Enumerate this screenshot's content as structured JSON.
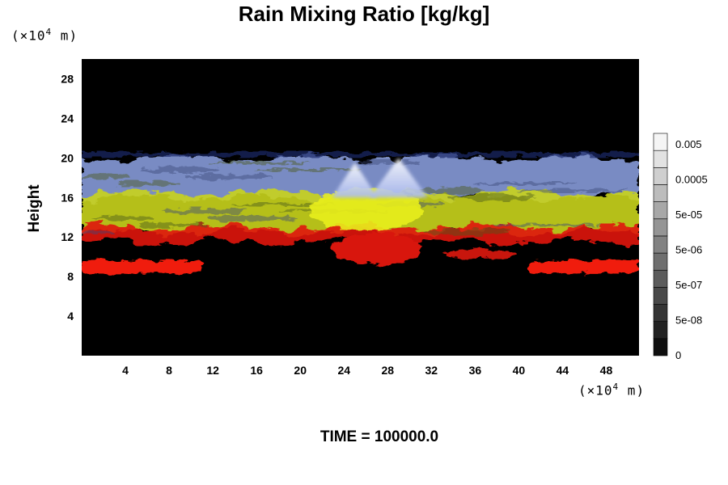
{
  "chart_data": {
    "type": "heatmap",
    "title": "Rain Mixing Ratio [kg/kg]",
    "ylabel": "Height",
    "xlabel": "",
    "x_unit_label": "×10",
    "y_unit_label": "×10",
    "unit_exponent": "4",
    "unit_suffix": " m",
    "xlim": [
      0,
      51
    ],
    "ylim": [
      0,
      30
    ],
    "x_ticks": [
      4,
      8,
      12,
      16,
      20,
      24,
      28,
      32,
      36,
      40,
      44,
      48
    ],
    "y_ticks": [
      4,
      8,
      12,
      16,
      20,
      24,
      28
    ],
    "colorbar": {
      "tick_labels": [
        "0.005",
        "0.0005",
        "5e-05",
        "5e-06",
        "5e-07",
        "5e-08",
        "0"
      ],
      "levels": 13
    },
    "layers": [
      {
        "name": "upper layer",
        "color": "#8fa4e6",
        "y_range": [
          16,
          20
        ]
      },
      {
        "name": "middle layer",
        "color": "#c9d41c",
        "y_range": [
          12.5,
          16.5
        ]
      },
      {
        "name": "lower layer",
        "color": "#e0140e",
        "y_range": [
          11.5,
          13
        ]
      },
      {
        "name": "bottom band",
        "color": "#f01c0c",
        "y_range": [
          8.5,
          9.5
        ]
      }
    ],
    "features": [
      {
        "name": "peak",
        "x": 25,
        "y": 19.5,
        "color": "#e8eefc"
      },
      {
        "name": "peak",
        "x": 29,
        "y": 20,
        "color": "#dde6fb"
      }
    ],
    "grid": false
  },
  "footer": {
    "time_label": "TIME = 100000.0"
  }
}
